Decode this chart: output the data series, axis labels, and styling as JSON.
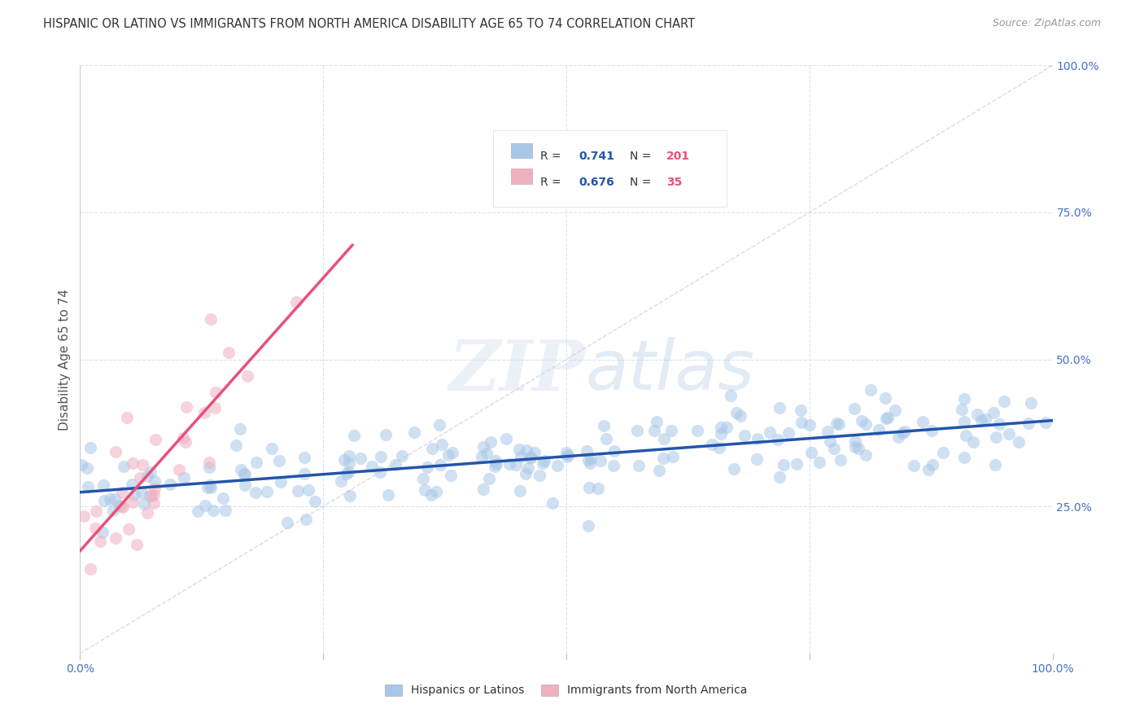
{
  "title": "HISPANIC OR LATINO VS IMMIGRANTS FROM NORTH AMERICA DISABILITY AGE 65 TO 74 CORRELATION CHART",
  "source": "Source: ZipAtlas.com",
  "ylabel": "Disability Age 65 to 74",
  "xlim": [
    0,
    1
  ],
  "ylim": [
    0,
    1
  ],
  "watermark_zip": "ZIP",
  "watermark_atlas": "atlas",
  "legend_label_1": "Hispanics or Latinos",
  "legend_label_2": "Immigrants from North America",
  "r1": 0.741,
  "n1": 201,
  "r2": 0.676,
  "n2": 35,
  "blue_dot_color": "#a8c8e8",
  "pink_dot_color": "#f0b0c0",
  "blue_line_color": "#2255aa",
  "pink_line_color": "#e8507a",
  "diag_color": "#cccccc",
  "background_color": "#ffffff",
  "grid_color": "#d8e4f0",
  "title_color": "#333333",
  "source_color": "#999999",
  "tick_color": "#4472c4",
  "ylabel_color": "#555555",
  "legend_r_color": "#333333",
  "legend_val_color": "#2255aa",
  "legend_n_val_color": "#e8507a",
  "watermark_zip_color": "#c8d8e8",
  "watermark_atlas_color": "#b0c8e0",
  "seed": 7
}
